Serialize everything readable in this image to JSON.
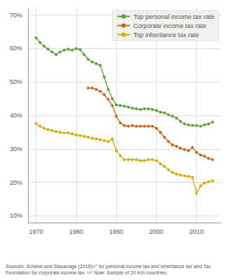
{
  "chart_data": {
    "type": "line",
    "marker": "circle",
    "grid": true,
    "legend": "upper right",
    "annotations": [
      "Sources: Scheve and Stasavage (2016)¹²⁷ for personal income tax and inheritance tax and Tax\nFoundation for corporate income tax. ¹²⁸ Note: Sample of 20 rich countries."
    ],
    "xlim": [
      1968,
      2016
    ],
    "xticks": [
      1970,
      1980,
      1990,
      2000,
      2010
    ],
    "ylim": [
      0.08,
      0.72
    ],
    "yticks": [
      {
        "value": 0.1,
        "label": "10%"
      },
      {
        "value": 0.2,
        "label": "20%"
      },
      {
        "value": 0.3,
        "label": "30%"
      },
      {
        "value": 0.4,
        "label": "40%"
      },
      {
        "value": 0.5,
        "label": "50%"
      },
      {
        "value": 0.6,
        "label": "60%"
      },
      {
        "value": 0.7,
        "label": "70%"
      }
    ],
    "x": [
      1970,
      1971,
      1972,
      1973,
      1974,
      1975,
      1976,
      1977,
      1978,
      1979,
      1980,
      1981,
      1982,
      1983,
      1984,
      1985,
      1986,
      1987,
      1988,
      1989,
      1990,
      1991,
      1992,
      1993,
      1994,
      1995,
      1996,
      1997,
      1998,
      1999,
      2000,
      2001,
      2002,
      2003,
      2004,
      2005,
      2006,
      2007,
      2008,
      2009,
      2010,
      2011,
      2012,
      2013,
      2014
    ],
    "series": [
      {
        "name": "Top personal income tax rate",
        "color": "#5a9e3a",
        "values": [
          0.632,
          0.618,
          0.607,
          0.598,
          0.59,
          0.582,
          0.59,
          0.595,
          0.598,
          0.595,
          0.6,
          0.597,
          0.582,
          0.568,
          0.56,
          0.555,
          0.55,
          0.515,
          0.478,
          0.45,
          0.432,
          0.43,
          0.428,
          0.425,
          0.422,
          0.42,
          0.418,
          0.42,
          0.42,
          0.418,
          0.415,
          0.41,
          0.408,
          0.402,
          0.398,
          0.392,
          0.382,
          0.375,
          0.372,
          0.37,
          0.37,
          0.368,
          0.372,
          0.375,
          0.38
        ]
      },
      {
        "name": "Corporate income tax rate",
        "color": "#c8641a",
        "values": [
          null,
          null,
          null,
          null,
          null,
          null,
          null,
          null,
          null,
          null,
          null,
          null,
          null,
          0.482,
          0.482,
          0.478,
          0.472,
          0.462,
          0.448,
          0.43,
          0.398,
          0.378,
          0.37,
          0.368,
          0.37,
          0.368,
          0.368,
          0.368,
          0.368,
          0.368,
          0.362,
          0.35,
          0.335,
          0.322,
          0.312,
          0.308,
          0.302,
          0.298,
          0.295,
          0.305,
          0.29,
          0.282,
          0.278,
          0.272,
          0.268
        ]
      },
      {
        "name": "Top inheritance tax rate",
        "color": "#d4a800",
        "values": [
          0.376,
          0.368,
          0.362,
          0.358,
          0.355,
          0.352,
          0.35,
          0.348,
          0.348,
          0.345,
          0.342,
          0.34,
          0.338,
          0.335,
          0.332,
          0.33,
          0.328,
          0.325,
          0.322,
          0.33,
          0.295,
          0.28,
          0.268,
          0.268,
          0.268,
          0.268,
          0.265,
          0.265,
          0.268,
          0.268,
          0.265,
          0.255,
          0.248,
          0.238,
          0.23,
          0.225,
          0.222,
          0.22,
          0.218,
          0.215,
          0.168,
          0.19,
          0.198,
          0.202,
          0.205
        ]
      }
    ]
  }
}
